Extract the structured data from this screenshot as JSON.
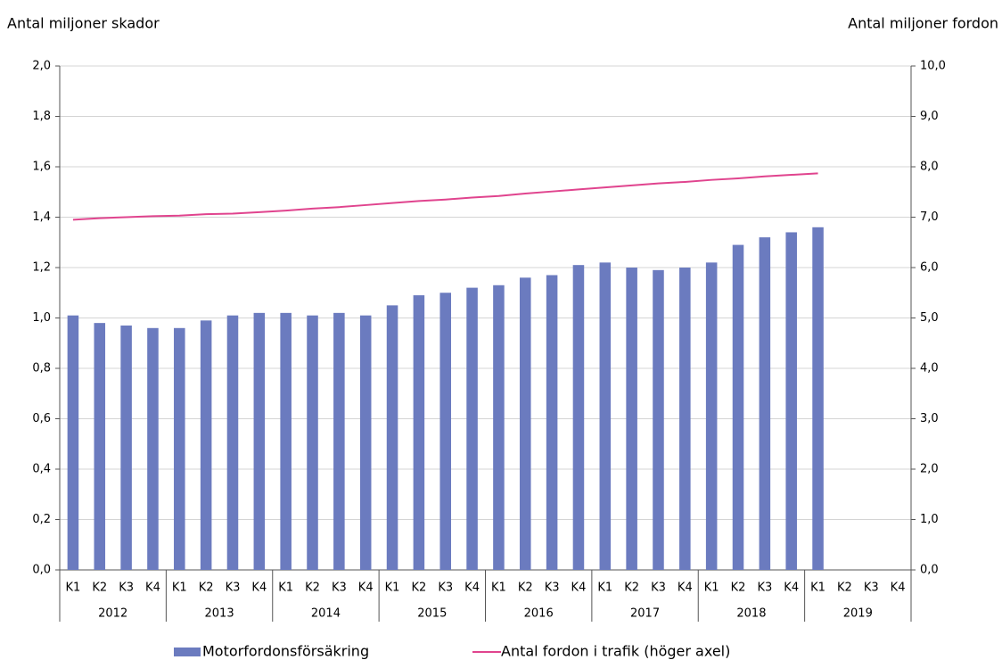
{
  "chart_data": {
    "type": "bar-line",
    "y_label": "Antal miljoner skador",
    "y2_label": "Antal miljoner fordon",
    "categories": [
      "K1",
      "K2",
      "K3",
      "K4",
      "K1",
      "K2",
      "K3",
      "K4",
      "K1",
      "K2",
      "K3",
      "K4",
      "K1",
      "K2",
      "K3",
      "K4",
      "K1",
      "K2",
      "K3",
      "K4",
      "K1",
      "K2",
      "K3",
      "K4",
      "K1",
      "K2",
      "K3",
      "K4",
      "K1",
      "K2",
      "K3",
      "K4"
    ],
    "groups": [
      "2012",
      "2013",
      "2014",
      "2015",
      "2016",
      "2017",
      "2018",
      "2019"
    ],
    "series": [
      {
        "name": "Motorfordonsförsäkring",
        "type": "bar",
        "color": "#6b7bbf",
        "values": [
          1.01,
          0.98,
          0.97,
          0.96,
          0.96,
          0.99,
          1.01,
          1.02,
          1.02,
          1.01,
          1.02,
          1.01,
          1.05,
          1.09,
          1.1,
          1.12,
          1.13,
          1.16,
          1.17,
          1.21,
          1.22,
          1.2,
          1.19,
          1.2,
          1.22,
          1.29,
          1.32,
          1.34,
          1.36,
          null,
          null,
          null
        ]
      },
      {
        "name": "Antal fordon i trafik (höger axel)",
        "type": "line",
        "axis": "y2",
        "color": "#e0448e",
        "values": [
          6.95,
          6.98,
          7.0,
          7.02,
          7.03,
          7.06,
          7.07,
          7.1,
          7.13,
          7.17,
          7.2,
          7.24,
          7.28,
          7.32,
          7.35,
          7.39,
          7.42,
          7.47,
          7.51,
          7.55,
          7.59,
          7.63,
          7.67,
          7.7,
          7.74,
          7.77,
          7.81,
          7.84,
          7.87,
          null,
          null,
          null
        ]
      }
    ],
    "ylim": [
      0,
      2
    ],
    "yticks": [
      {
        "value": 0,
        "label": "0,0"
      },
      {
        "value": 0.2,
        "label": "0,2"
      },
      {
        "value": 0.4,
        "label": "0,4"
      },
      {
        "value": 0.6,
        "label": "0,6"
      },
      {
        "value": 0.8,
        "label": "0,8"
      },
      {
        "value": 1.0,
        "label": "1,0"
      },
      {
        "value": 1.2,
        "label": "1,2"
      },
      {
        "value": 1.4,
        "label": "1,4"
      },
      {
        "value": 1.6,
        "label": "1,6"
      },
      {
        "value": 1.8,
        "label": "1,8"
      },
      {
        "value": 2.0,
        "label": "2,0"
      }
    ],
    "y2lim": [
      0,
      10
    ],
    "y2ticks": [
      {
        "value": 0,
        "label": "0,0"
      },
      {
        "value": 1,
        "label": "1,0"
      },
      {
        "value": 2,
        "label": "2,0"
      },
      {
        "value": 3,
        "label": "3,0"
      },
      {
        "value": 4,
        "label": "4,0"
      },
      {
        "value": 5,
        "label": "5,0"
      },
      {
        "value": 6,
        "label": "6,0"
      },
      {
        "value": 7,
        "label": "7,0"
      },
      {
        "value": 8,
        "label": "8,0"
      },
      {
        "value": 9,
        "label": "9,0"
      },
      {
        "value": 10,
        "label": "10,0"
      }
    ],
    "grid": true,
    "legend": "bottom"
  }
}
